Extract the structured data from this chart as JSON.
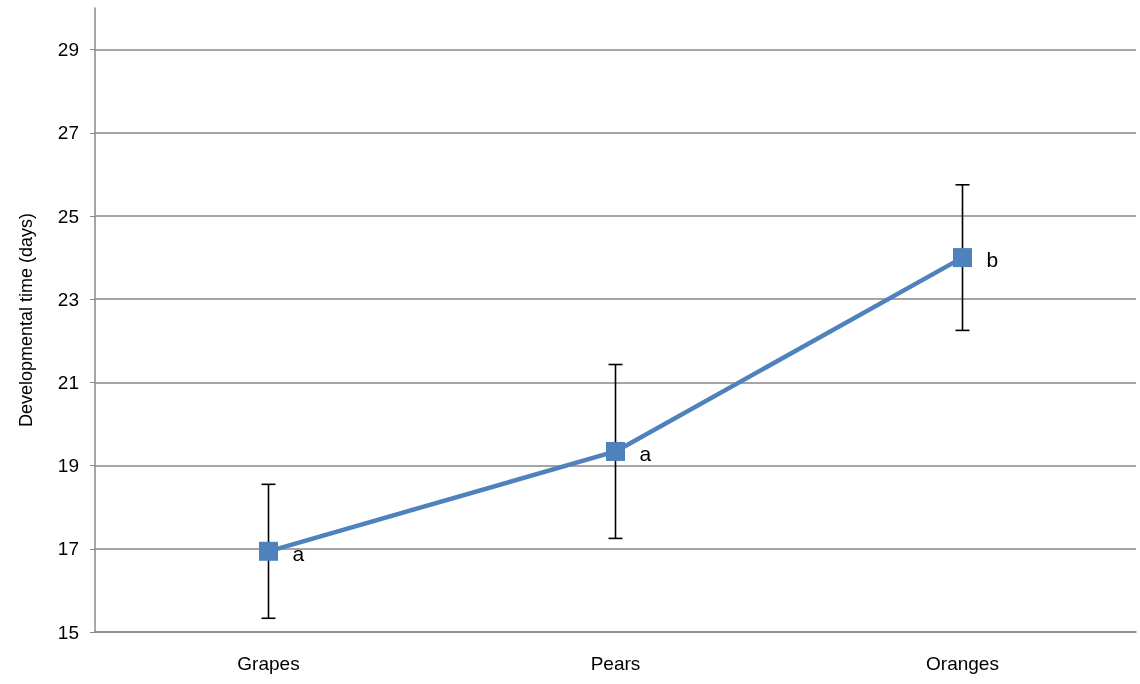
{
  "chart_data": {
    "type": "line",
    "ylabel": "Developmental time (days)",
    "categories": [
      "Grapes",
      "Pears",
      "Oranges"
    ],
    "series": [
      {
        "color": "#4f81bd",
        "values": [
          16.94,
          19.34,
          24.0
        ],
        "errors": [
          1.61,
          2.09,
          1.75
        ]
      }
    ],
    "ylim": [
      15,
      30
    ],
    "yticks": [
      15,
      17,
      19,
      21,
      23,
      25,
      27,
      29
    ],
    "grid": "y",
    "marker": "square",
    "line_style": "solid",
    "annotations": [
      {
        "text": "a",
        "x": "Grapes",
        "y": 16.94
      },
      {
        "text": "a",
        "x": "Pears",
        "y": 19.34
      },
      {
        "text": "b",
        "x": "Oranges",
        "y": 24.0
      }
    ]
  }
}
